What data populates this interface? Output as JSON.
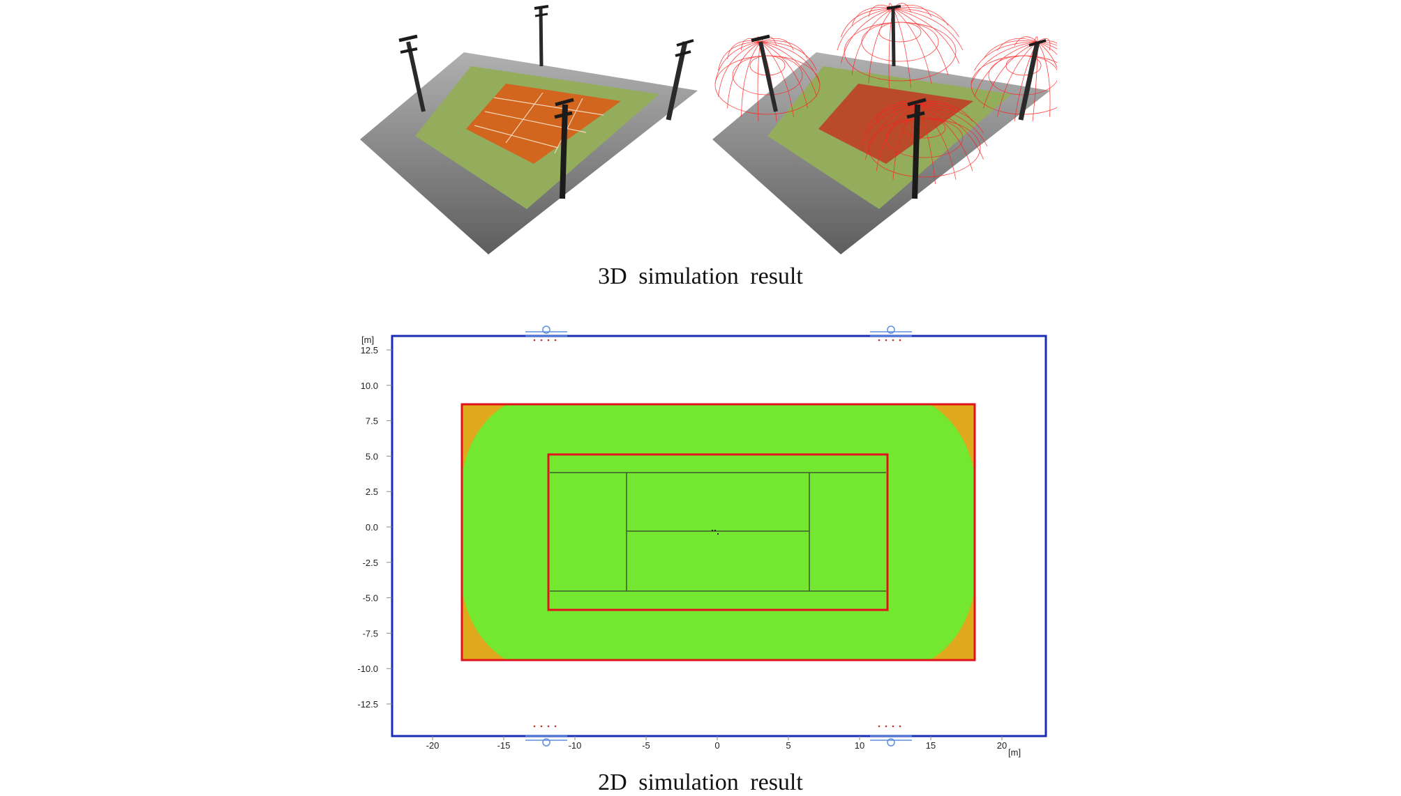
{
  "captions": {
    "top": "3D simulation result",
    "bottom": "2D simulation result"
  },
  "plan": {
    "y_unit": "[m]",
    "x_unit": "[m]",
    "y_ticks": [
      "12.5",
      "10.0",
      "7.5",
      "5.0",
      "2.5",
      "0.0",
      "-2.5",
      "-5.0",
      "-7.5",
      "-10.0",
      "-12.5"
    ],
    "x_ticks": [
      "-20",
      "-15",
      "-10",
      "-5",
      "0",
      "5",
      "10",
      "15",
      "20"
    ],
    "colors": {
      "frame": "#1a2bb5",
      "area_outline": "#e0121b",
      "illuminance_main": "#74e830",
      "illuminance_corner": "#e0a81c",
      "court_lines": "#3b5a2b",
      "luminaire": "#5b8fe0"
    }
  },
  "scenes": {
    "colors": {
      "ground": "#8a8a8a",
      "grass": "#93ad5c",
      "court": "#d2661f",
      "pole": "#1b1b1b",
      "light_cone": "#ff2020"
    }
  }
}
